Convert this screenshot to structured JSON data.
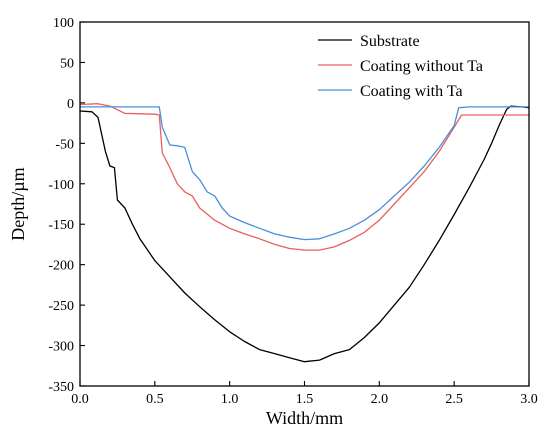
{
  "chart_data": {
    "type": "line",
    "title": "",
    "xlabel": "Width/mm",
    "ylabel": "Depth/µm",
    "xlim": [
      0,
      3.0
    ],
    "ylim": [
      -350,
      100
    ],
    "x_ticks": [
      0.0,
      0.5,
      1.0,
      1.5,
      2.0,
      2.5,
      3.0
    ],
    "x_tick_labels": [
      "0.0",
      "0.5",
      "1.0",
      "1.5",
      "2.0",
      "2.5",
      "3.0"
    ],
    "y_ticks": [
      -350,
      -300,
      -250,
      -200,
      -150,
      -100,
      -50,
      0,
      50,
      100
    ],
    "y_tick_labels": [
      "-350",
      "-300",
      "-250",
      "-200",
      "-150",
      "-100",
      "-50",
      "0",
      "50",
      "100"
    ],
    "grid": false,
    "legend_position": "top-right",
    "series": [
      {
        "name": "Substrate",
        "color": "#000000",
        "points": [
          [
            0.0,
            -10
          ],
          [
            0.08,
            -11
          ],
          [
            0.12,
            -18
          ],
          [
            0.17,
            -60
          ],
          [
            0.2,
            -78
          ],
          [
            0.23,
            -80
          ],
          [
            0.25,
            -120
          ],
          [
            0.3,
            -130
          ],
          [
            0.35,
            -150
          ],
          [
            0.4,
            -168
          ],
          [
            0.5,
            -195
          ],
          [
            0.6,
            -215
          ],
          [
            0.7,
            -235
          ],
          [
            0.8,
            -252
          ],
          [
            0.9,
            -268
          ],
          [
            1.0,
            -283
          ],
          [
            1.1,
            -295
          ],
          [
            1.2,
            -305
          ],
          [
            1.3,
            -310
          ],
          [
            1.4,
            -315
          ],
          [
            1.5,
            -320
          ],
          [
            1.6,
            -318
          ],
          [
            1.7,
            -310
          ],
          [
            1.8,
            -305
          ],
          [
            1.9,
            -290
          ],
          [
            2.0,
            -272
          ],
          [
            2.1,
            -250
          ],
          [
            2.2,
            -228
          ],
          [
            2.3,
            -200
          ],
          [
            2.4,
            -170
          ],
          [
            2.5,
            -138
          ],
          [
            2.6,
            -105
          ],
          [
            2.7,
            -70
          ],
          [
            2.75,
            -50
          ],
          [
            2.8,
            -28
          ],
          [
            2.85,
            -8
          ],
          [
            2.88,
            -4
          ],
          [
            2.95,
            -5
          ],
          [
            3.0,
            -6
          ]
        ]
      },
      {
        "name": "Coating without Ta",
        "color": "#e8605e",
        "points": [
          [
            0.0,
            -2
          ],
          [
            0.12,
            -1
          ],
          [
            0.2,
            -4
          ],
          [
            0.3,
            -13
          ],
          [
            0.5,
            -14
          ],
          [
            0.53,
            -15
          ],
          [
            0.55,
            -62
          ],
          [
            0.6,
            -80
          ],
          [
            0.65,
            -100
          ],
          [
            0.7,
            -110
          ],
          [
            0.75,
            -115
          ],
          [
            0.8,
            -130
          ],
          [
            0.9,
            -145
          ],
          [
            1.0,
            -155
          ],
          [
            1.1,
            -162
          ],
          [
            1.2,
            -168
          ],
          [
            1.3,
            -175
          ],
          [
            1.4,
            -180
          ],
          [
            1.5,
            -182
          ],
          [
            1.6,
            -182
          ],
          [
            1.7,
            -178
          ],
          [
            1.8,
            -170
          ],
          [
            1.9,
            -160
          ],
          [
            2.0,
            -145
          ],
          [
            2.1,
            -125
          ],
          [
            2.2,
            -105
          ],
          [
            2.3,
            -85
          ],
          [
            2.4,
            -60
          ],
          [
            2.5,
            -30
          ],
          [
            2.55,
            -15
          ],
          [
            2.7,
            -15
          ],
          [
            3.0,
            -15
          ]
        ]
      },
      {
        "name": "Coating with Ta",
        "color": "#4a8fd8",
        "points": [
          [
            0.0,
            -5
          ],
          [
            0.2,
            -5
          ],
          [
            0.53,
            -5
          ],
          [
            0.55,
            -30
          ],
          [
            0.6,
            -52
          ],
          [
            0.65,
            -53
          ],
          [
            0.7,
            -55
          ],
          [
            0.75,
            -85
          ],
          [
            0.8,
            -95
          ],
          [
            0.85,
            -110
          ],
          [
            0.9,
            -115
          ],
          [
            0.95,
            -130
          ],
          [
            1.0,
            -140
          ],
          [
            1.1,
            -148
          ],
          [
            1.2,
            -155
          ],
          [
            1.3,
            -162
          ],
          [
            1.4,
            -166
          ],
          [
            1.5,
            -169
          ],
          [
            1.6,
            -168
          ],
          [
            1.7,
            -162
          ],
          [
            1.8,
            -155
          ],
          [
            1.9,
            -145
          ],
          [
            2.0,
            -132
          ],
          [
            2.1,
            -115
          ],
          [
            2.2,
            -98
          ],
          [
            2.3,
            -78
          ],
          [
            2.4,
            -55
          ],
          [
            2.5,
            -28
          ],
          [
            2.53,
            -6
          ],
          [
            2.6,
            -5
          ],
          [
            2.85,
            -5
          ],
          [
            3.0,
            -5
          ]
        ]
      }
    ]
  }
}
